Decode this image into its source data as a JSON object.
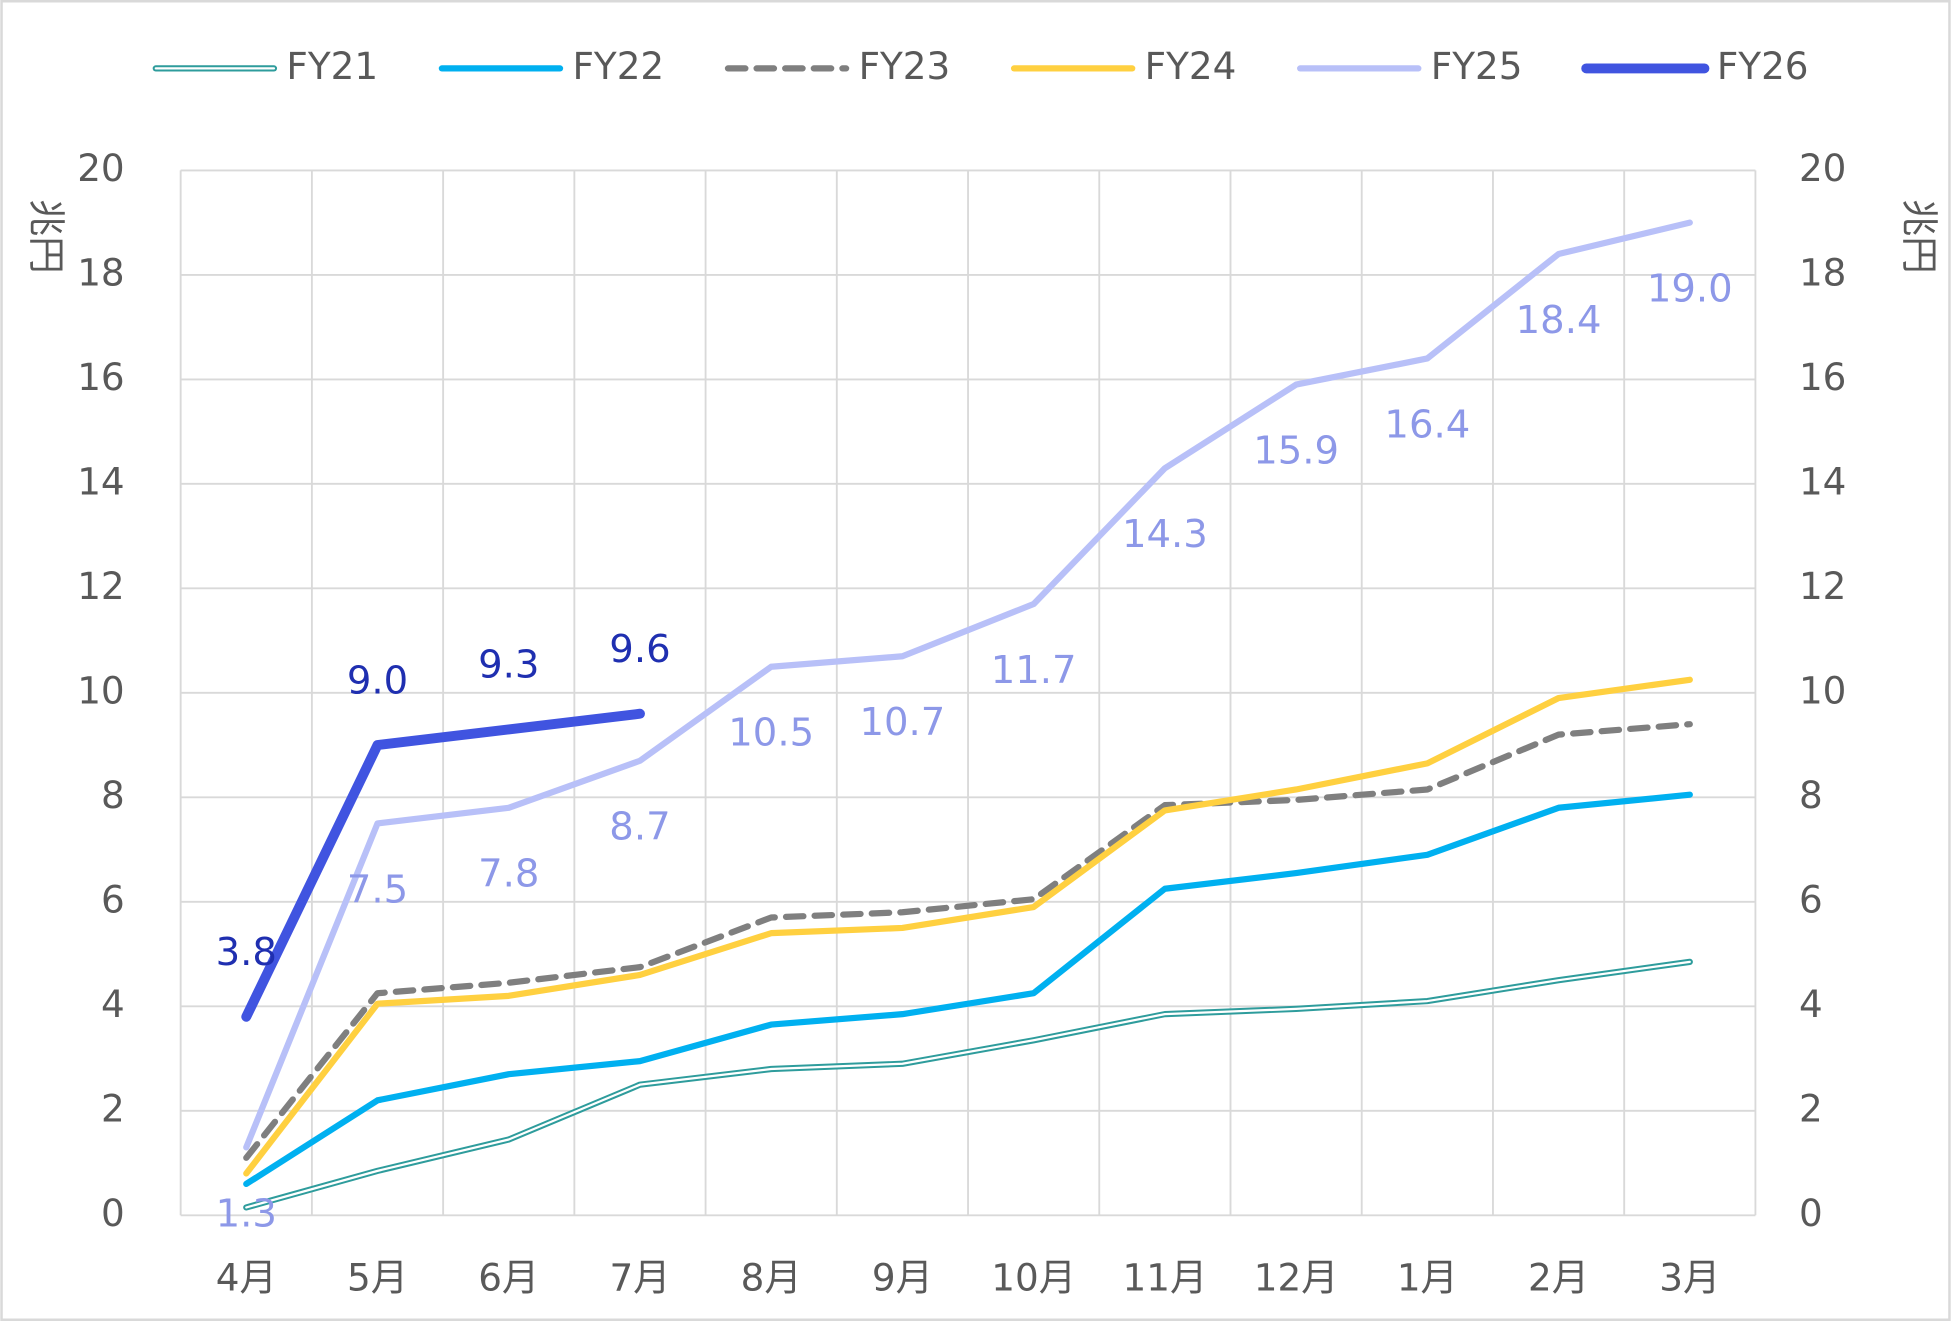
{
  "chart_data": {
    "type": "line",
    "categories": [
      "4月",
      "5月",
      "6月",
      "7月",
      "8月",
      "9月",
      "10月",
      "11月",
      "12月",
      "1月",
      "2月",
      "3月"
    ],
    "y_label": "兆円",
    "y2_label": "兆円",
    "ylim": [
      0,
      20
    ],
    "yticks": [
      0,
      2,
      4,
      6,
      8,
      10,
      12,
      14,
      16,
      18,
      20
    ],
    "y2lim": [
      0,
      20
    ],
    "y2ticks": [
      0,
      2,
      4,
      6,
      8,
      10,
      12,
      14,
      16,
      18,
      20
    ],
    "grid": true,
    "legend": "top",
    "series": [
      {
        "name": "FY21",
        "color": "#2e9c9c",
        "style": "double",
        "values": [
          0.15,
          0.85,
          1.45,
          2.5,
          2.8,
          2.9,
          3.35,
          3.85,
          3.95,
          4.1,
          4.5,
          4.85
        ]
      },
      {
        "name": "FY22",
        "color": "#00b0f0",
        "style": "solid",
        "values": [
          0.6,
          2.2,
          2.7,
          2.95,
          3.65,
          3.85,
          4.25,
          6.25,
          6.55,
          6.9,
          7.8,
          8.05
        ]
      },
      {
        "name": "FY23",
        "color": "#7f7f7f",
        "style": "dashed",
        "values": [
          1.1,
          4.25,
          4.45,
          4.75,
          5.7,
          5.8,
          6.05,
          7.85,
          7.95,
          8.15,
          9.2,
          9.4
        ]
      },
      {
        "name": "FY24",
        "color": "#ffd040",
        "style": "solid",
        "values": [
          0.8,
          4.05,
          4.2,
          4.6,
          5.4,
          5.5,
          5.9,
          7.75,
          8.15,
          8.65,
          9.9,
          10.25
        ]
      },
      {
        "name": "FY25",
        "color": "#b8c0f8",
        "style": "solid",
        "label_color": "#8d98e8",
        "label_position": "below",
        "values": [
          1.3,
          7.5,
          7.8,
          8.7,
          10.5,
          10.7,
          11.7,
          14.3,
          15.9,
          16.4,
          18.4,
          19.0
        ],
        "value_labels": [
          "1.3",
          "7.5",
          "7.8",
          "8.7",
          "10.5",
          "10.7",
          "11.7",
          "14.3",
          "15.9",
          "16.4",
          "18.4",
          "19.0"
        ]
      },
      {
        "name": "FY26",
        "color": "#4054e0",
        "style": "bold",
        "label_color": "#1f2fb0",
        "label_position": "above",
        "values": [
          3.8,
          9.0,
          9.3,
          9.6,
          null,
          null,
          null,
          null,
          null,
          null,
          null,
          null
        ],
        "value_labels": [
          "3.8",
          "9.0",
          "9.3",
          "9.6",
          null,
          null,
          null,
          null,
          null,
          null,
          null,
          null
        ]
      }
    ]
  }
}
